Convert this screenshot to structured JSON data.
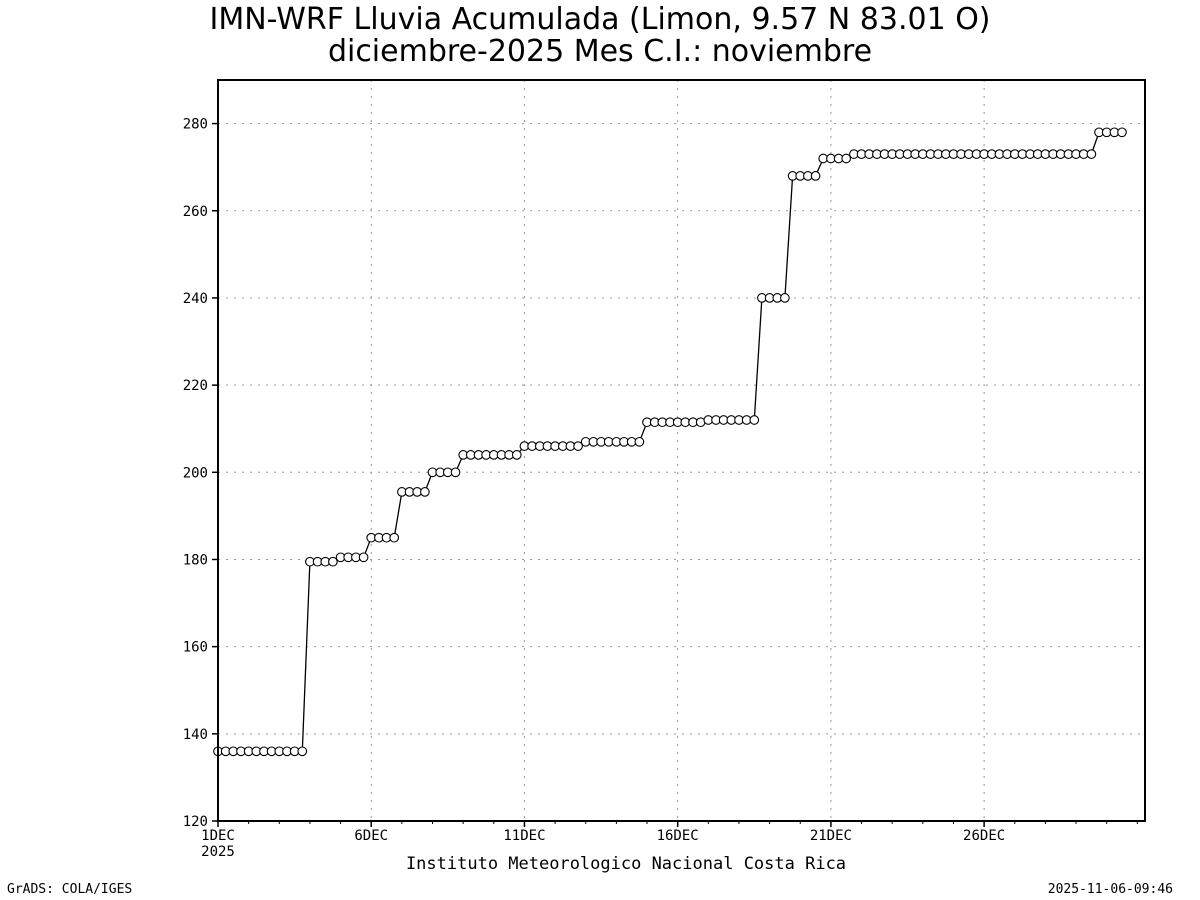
{
  "title_line1": "IMN-WRF  Lluvia Acumulada (Limon, 9.57  N 83.01  O)",
  "title_line2": "diciembre-2025 Mes C.I.: noviembre",
  "footer_left": "GrADS: COLA/IGES",
  "footer_right": "2025-11-06-09:46",
  "chart_data": {
    "type": "line",
    "title": "IMN-WRF  Lluvia Acumulada (Limon, 9.57  N 83.01  O)",
    "subtitle": "diciembre-2025 Mes C.I.: noviembre",
    "xlabel": "Instituto Meteorologico Nacional Costa Rica",
    "ylabel": "",
    "ylim": [
      120,
      290
    ],
    "xlim_days": [
      1,
      31.25
    ],
    "y_ticks": [
      120,
      140,
      160,
      180,
      200,
      220,
      240,
      260,
      280
    ],
    "x_ticks": [
      {
        "day": 1,
        "label": "1DEC",
        "sub": "2025"
      },
      {
        "day": 6,
        "label": "6DEC",
        "sub": ""
      },
      {
        "day": 11,
        "label": "11DEC",
        "sub": ""
      },
      {
        "day": 16,
        "label": "16DEC",
        "sub": ""
      },
      {
        "day": 21,
        "label": "21DEC",
        "sub": ""
      },
      {
        "day": 26,
        "label": "26DEC",
        "sub": ""
      }
    ],
    "grid": true,
    "marker": "open-circle",
    "series": [
      {
        "name": "",
        "step_days": 0.25,
        "start_day": 1,
        "values": [
          136,
          136,
          136,
          136,
          136,
          136,
          136,
          136,
          136,
          136,
          136,
          136,
          179.5,
          179.5,
          179.5,
          179.5,
          180.5,
          180.5,
          180.5,
          180.5,
          185,
          185,
          185,
          185,
          195.5,
          195.5,
          195.5,
          195.5,
          200,
          200,
          200,
          200,
          204,
          204,
          204,
          204,
          204,
          204,
          204,
          204,
          206,
          206,
          206,
          206,
          206,
          206,
          206,
          206,
          207,
          207,
          207,
          207,
          207,
          207,
          207,
          207,
          211.5,
          211.5,
          211.5,
          211.5,
          211.5,
          211.5,
          211.5,
          211.5,
          212,
          212,
          212,
          212,
          212,
          212,
          212,
          240,
          240,
          240,
          240,
          268,
          268,
          268,
          268,
          272,
          272,
          272,
          272,
          273,
          273,
          273,
          273,
          273,
          273,
          273,
          273,
          273,
          273,
          273,
          273,
          273,
          273,
          273,
          273,
          273,
          273,
          273,
          273,
          273,
          273,
          273,
          273,
          273,
          273,
          273,
          273,
          273,
          273,
          273,
          273,
          278,
          278,
          278,
          278
        ]
      }
    ]
  }
}
